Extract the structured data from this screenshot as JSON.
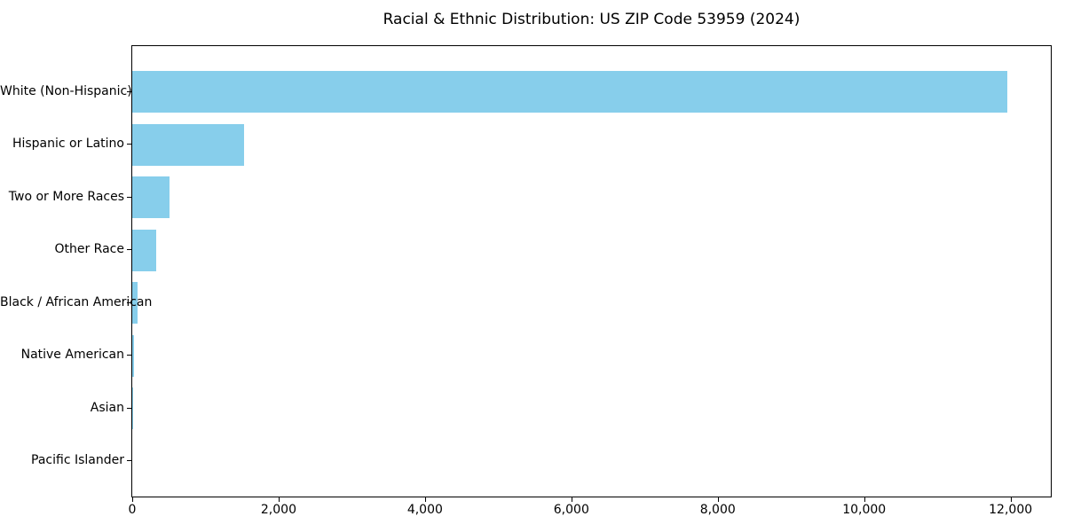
{
  "chart_data": {
    "type": "bar",
    "orientation": "horizontal",
    "title": "Racial & Ethnic Distribution: US ZIP Code 53959 (2024)",
    "categories": [
      "White (Non-Hispanic)",
      "Hispanic or Latino",
      "Two or More Races",
      "Other Race",
      "Black / African American",
      "Native American",
      "Asian",
      "Pacific Islander"
    ],
    "values": [
      11950,
      1525,
      515,
      325,
      75,
      20,
      15,
      0
    ],
    "bar_color": "#87CEEB",
    "background_color": "#ffffff",
    "text_color": "#000000",
    "xlabel": "",
    "ylabel": "",
    "xlim": [
      0,
      12550
    ],
    "xticks": [
      0,
      2000,
      4000,
      6000,
      8000,
      10000,
      12000
    ],
    "xtick_labels": [
      "0",
      "2,000",
      "4,000",
      "6,000",
      "8,000",
      "10,000",
      "12,000"
    ],
    "grid": false,
    "legend_position": "none"
  }
}
